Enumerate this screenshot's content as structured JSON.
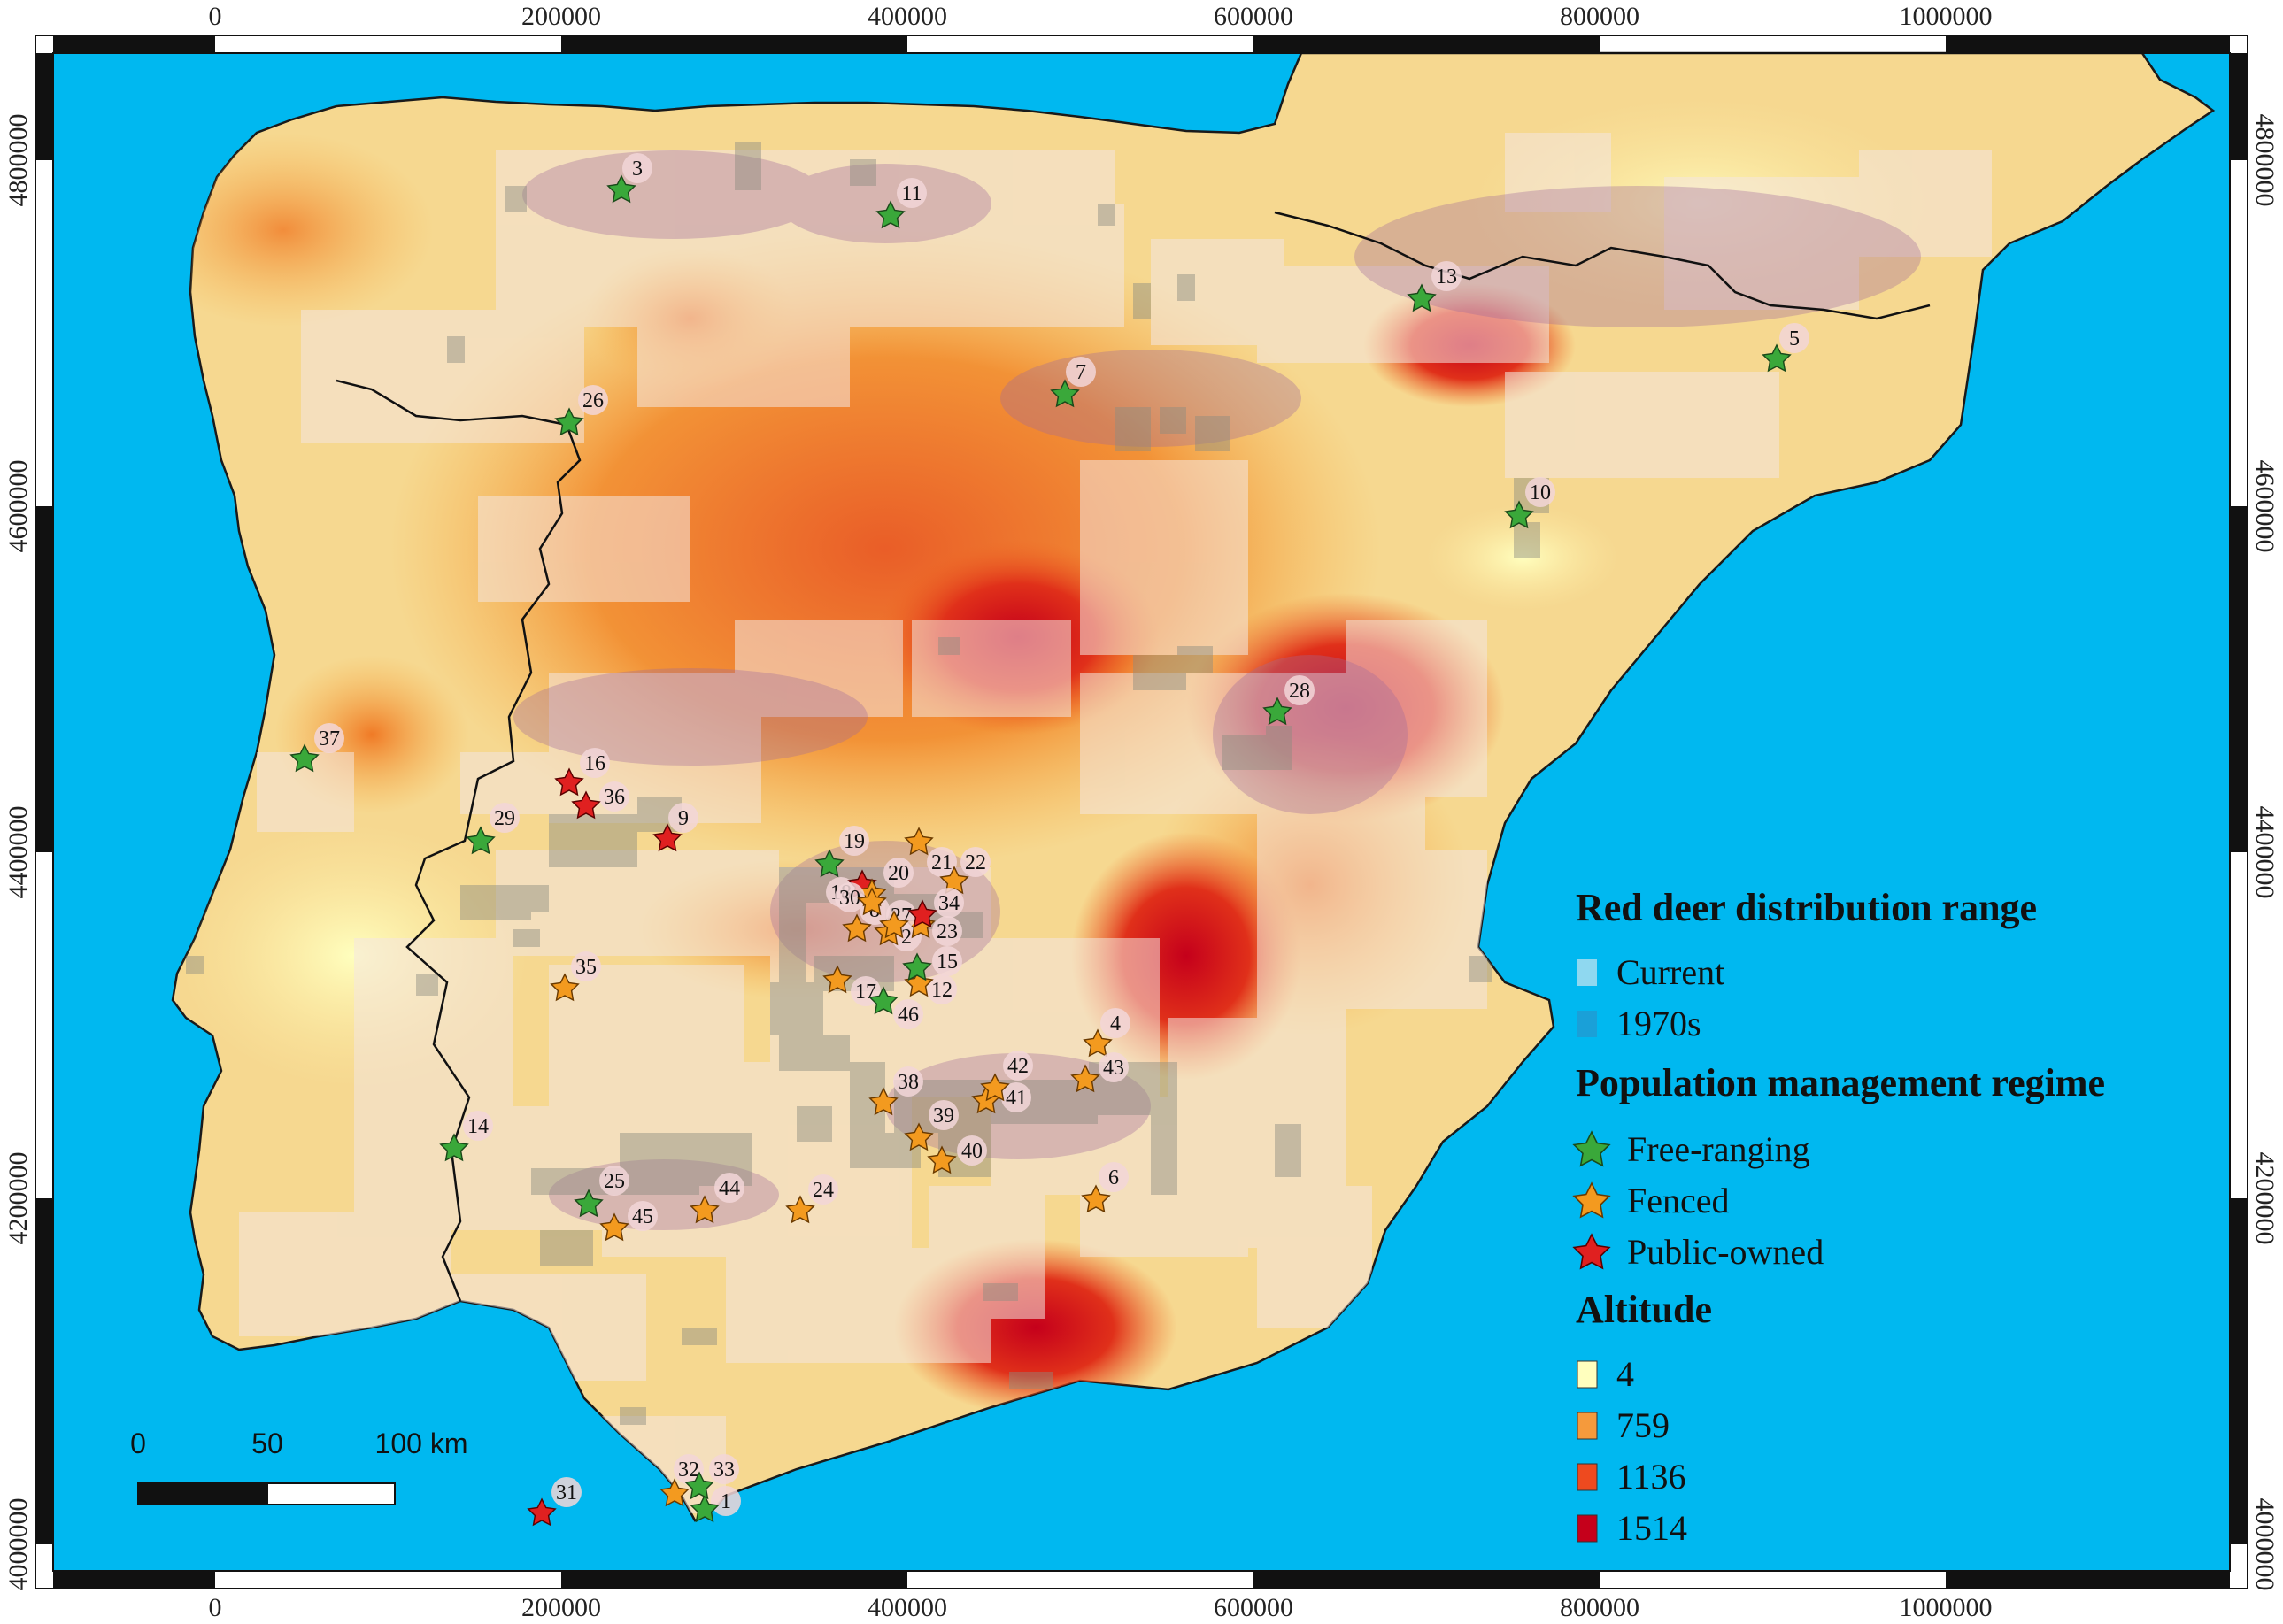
{
  "axes": {
    "x_ticks": [
      "0",
      "200000",
      "400000",
      "600000",
      "800000",
      "1000000"
    ],
    "y_ticks": [
      "4000000",
      "4200000",
      "4400000",
      "4600000",
      "4800000"
    ]
  },
  "legend": {
    "range_title": "Red deer distribution range",
    "range_items": [
      {
        "label": "Current",
        "color": "#8fd8f0"
      },
      {
        "label": "1970s",
        "color": "#1aa0d8"
      }
    ],
    "regime_title": "Population management regime",
    "regime_items": [
      {
        "label": "Free-ranging",
        "color": "#3aa83a"
      },
      {
        "label": "Fenced",
        "color": "#f39a1f"
      },
      {
        "label": "Public-owned",
        "color": "#e02020"
      }
    ],
    "altitude_title": "Altitude",
    "altitude_items": [
      {
        "label": "4",
        "color": "#ffffbe"
      },
      {
        "label": "759",
        "color": "#f59a3c"
      },
      {
        "label": "1136",
        "color": "#ee4a1f"
      },
      {
        "label": "1514",
        "color": "#c5001b"
      }
    ]
  },
  "scale_bar": {
    "labels": [
      "0",
      "50",
      "100 km"
    ]
  },
  "colors": {
    "sea": "#00b8f0",
    "land": "#f6d890"
  },
  "sites": [
    {
      "id": "1",
      "regime": "free"
    },
    {
      "id": "2",
      "regime": "fenced"
    },
    {
      "id": "3",
      "regime": "free"
    },
    {
      "id": "4",
      "regime": "fenced"
    },
    {
      "id": "5",
      "regime": "free"
    },
    {
      "id": "6",
      "regime": "fenced"
    },
    {
      "id": "7",
      "regime": "free"
    },
    {
      "id": "8",
      "regime": "fenced"
    },
    {
      "id": "9",
      "regime": "public"
    },
    {
      "id": "10",
      "regime": "free"
    },
    {
      "id": "11",
      "regime": "free"
    },
    {
      "id": "12",
      "regime": "fenced"
    },
    {
      "id": "13",
      "regime": "free"
    },
    {
      "id": "14",
      "regime": "free"
    },
    {
      "id": "15",
      "regime": "free"
    },
    {
      "id": "16",
      "regime": "public"
    },
    {
      "id": "17",
      "regime": "fenced"
    },
    {
      "id": "18",
      "regime": "public"
    },
    {
      "id": "19",
      "regime": "free"
    },
    {
      "id": "20",
      "regime": "fenced"
    },
    {
      "id": "21",
      "regime": "fenced"
    },
    {
      "id": "22",
      "regime": "fenced"
    },
    {
      "id": "23",
      "regime": "fenced"
    },
    {
      "id": "24",
      "regime": "fenced"
    },
    {
      "id": "25",
      "regime": "free"
    },
    {
      "id": "26",
      "regime": "free"
    },
    {
      "id": "27",
      "regime": "fenced"
    },
    {
      "id": "28",
      "regime": "free"
    },
    {
      "id": "29",
      "regime": "free"
    },
    {
      "id": "30",
      "regime": "fenced"
    },
    {
      "id": "31",
      "regime": "public"
    },
    {
      "id": "32",
      "regime": "fenced"
    },
    {
      "id": "33",
      "regime": "free"
    },
    {
      "id": "34",
      "regime": "public"
    },
    {
      "id": "35",
      "regime": "fenced"
    },
    {
      "id": "36",
      "regime": "public"
    },
    {
      "id": "37",
      "regime": "free"
    },
    {
      "id": "38",
      "regime": "fenced"
    },
    {
      "id": "39",
      "regime": "fenced"
    },
    {
      "id": "40",
      "regime": "fenced"
    },
    {
      "id": "41",
      "regime": "fenced"
    },
    {
      "id": "42",
      "regime": "fenced"
    },
    {
      "id": "43",
      "regime": "fenced"
    },
    {
      "id": "44",
      "regime": "fenced"
    },
    {
      "id": "45",
      "regime": "fenced"
    },
    {
      "id": "46",
      "regime": "free"
    }
  ]
}
